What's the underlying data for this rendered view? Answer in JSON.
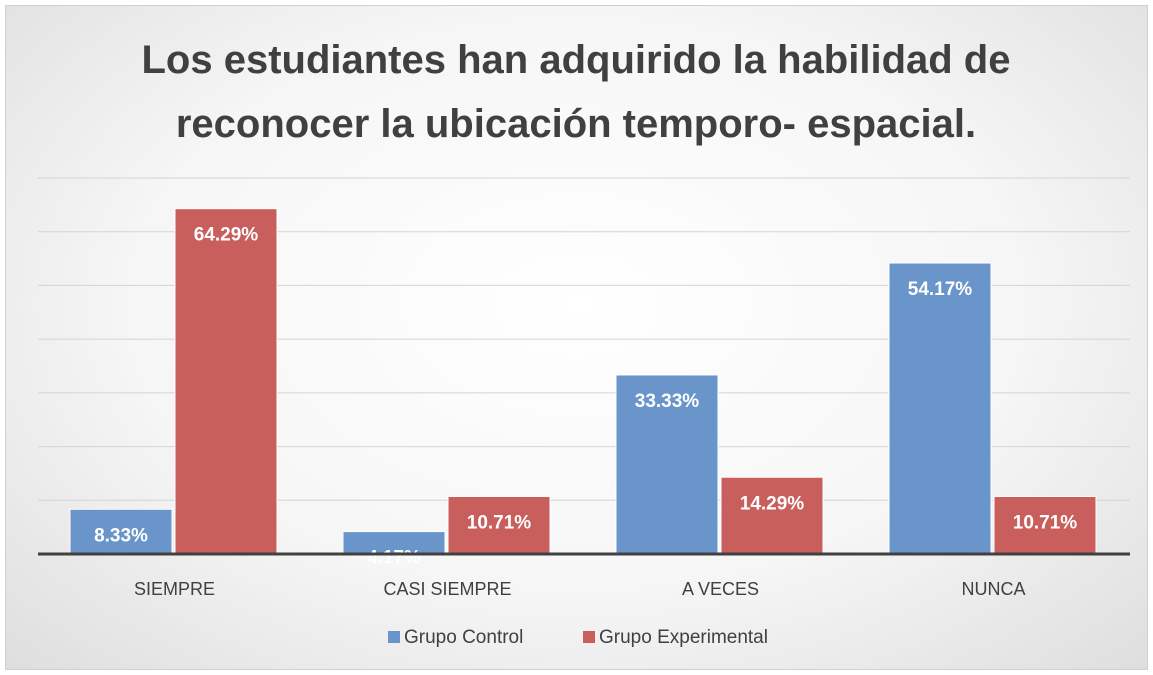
{
  "chart_data": {
    "type": "bar",
    "title": "Los estudiantes han adquirido la habilidad de reconocer la ubicación temporo- espacial.",
    "categories": [
      "SIEMPRE",
      "CASI SIEMPRE",
      "A VECES",
      "NUNCA"
    ],
    "series": [
      {
        "name": "Grupo Control",
        "color": "#6a95ca",
        "values": [
          8.33,
          4.17,
          33.33,
          54.17
        ],
        "value_labels": [
          "8.33%",
          "4.17%",
          "33.33%",
          "54.17%"
        ]
      },
      {
        "name": "Grupo Experimental",
        "color": "#c95f5d",
        "values": [
          64.29,
          10.71,
          14.29,
          10.71
        ],
        "value_labels": [
          "64.29%",
          "10.71%",
          "14.29%",
          "10.71%"
        ]
      }
    ],
    "ylim": [
      0,
      70
    ],
    "yticks": [
      0,
      10,
      20,
      30,
      40,
      50,
      60,
      70
    ],
    "grid": true,
    "legend": "bottom"
  }
}
